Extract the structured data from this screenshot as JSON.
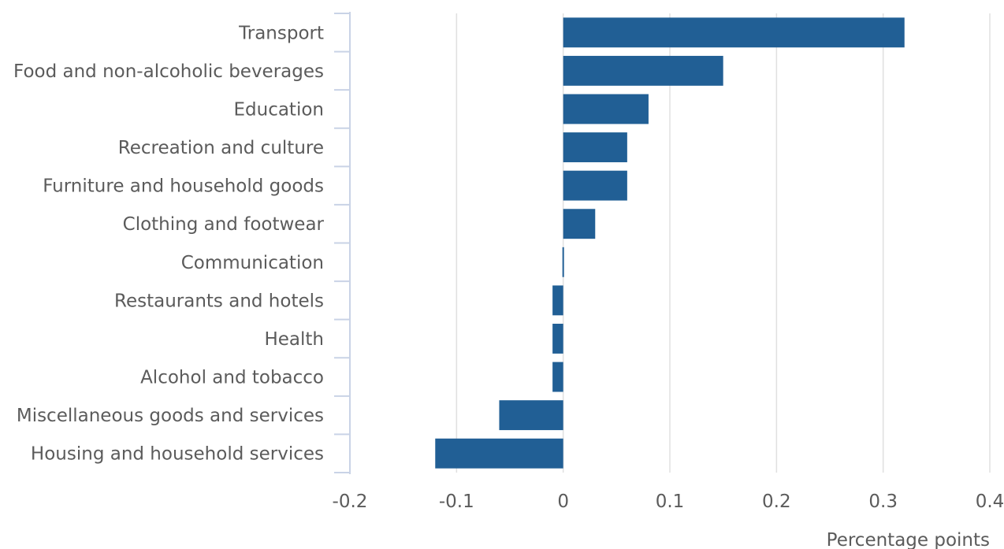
{
  "chart_data": {
    "type": "bar",
    "orientation": "horizontal",
    "categories": [
      "Transport",
      "Food and non-alcoholic beverages",
      "Education",
      "Recreation and culture",
      "Furniture and household goods",
      "Clothing and footwear",
      "Communication",
      "Restaurants and hotels",
      "Health",
      "Alcohol and tobacco",
      "Miscellaneous goods and services",
      "Housing and household services"
    ],
    "values": [
      0.32,
      0.15,
      0.08,
      0.06,
      0.06,
      0.03,
      -0.001,
      -0.01,
      -0.01,
      -0.01,
      -0.06,
      -0.12
    ],
    "xlim": [
      -0.2,
      0.4
    ],
    "xticks": [
      -0.2,
      -0.1,
      0,
      0.1,
      0.2,
      0.3,
      0.4
    ],
    "xtick_labels": [
      "-0.2",
      "-0.1",
      "0",
      "0.1",
      "0.2",
      "0.3",
      "0.4"
    ],
    "xlabel": "Percentage points",
    "ylabel": "",
    "title": "",
    "grid": "vertical",
    "legend": "none",
    "bar_color": "#215f95",
    "grid_color": "#e0e0e0",
    "axis_color": "#c9d3e6",
    "text_color": "#5b5b5b"
  }
}
